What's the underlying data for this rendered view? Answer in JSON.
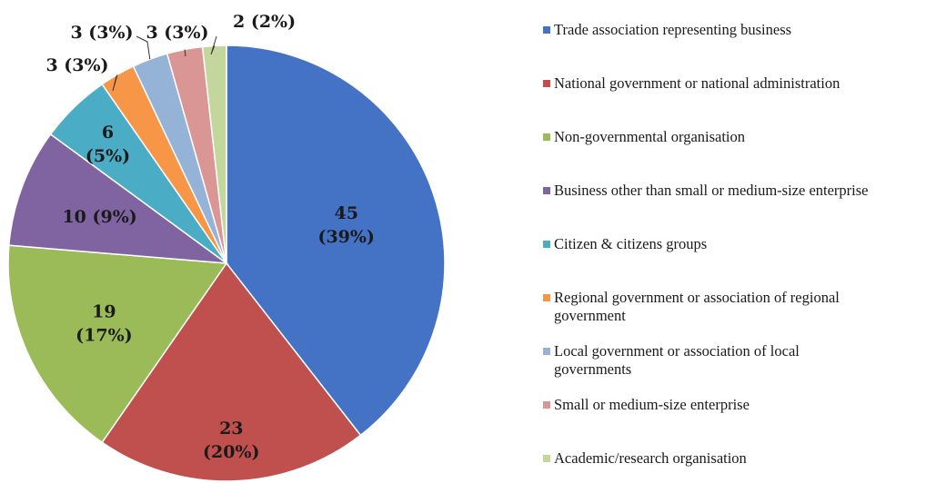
{
  "chart_data": {
    "type": "pie",
    "title": "",
    "legend_position": "right",
    "slices": [
      {
        "name": "Trade association representing business",
        "value": 45,
        "label_value": "45",
        "label_pct": "(39%)",
        "color": "#4472C4"
      },
      {
        "name": "National government or national administration",
        "value": 23,
        "label_value": "23",
        "label_pct": "(20%)",
        "color": "#C0504D"
      },
      {
        "name": "Non-governmental organisation",
        "value": 19,
        "label_value": "19",
        "label_pct": "(17%)",
        "color": "#9BBB59"
      },
      {
        "name": "Business other than small or medium-size enterprise",
        "value": 10,
        "label_value": "10 (9%)",
        "label_pct": "",
        "color": "#8064A2"
      },
      {
        "name": "Citizen & citizens groups",
        "value": 6,
        "label_value": "6",
        "label_pct": "(5%)",
        "color": "#4BACC6"
      },
      {
        "name": "Regional government or association of regional government",
        "value": 3,
        "label_value": "3 (3%)",
        "label_pct": "",
        "color": "#F79646"
      },
      {
        "name": "Local government or association of local governments",
        "value": 3,
        "label_value": "3 (3%)",
        "label_pct": "",
        "color": "#95B3D7"
      },
      {
        "name": "Small or medium-size enterprise",
        "value": 3,
        "label_value": "3 (3%)",
        "label_pct": "",
        "color": "#D99694"
      },
      {
        "name": "Academic/research organisation",
        "value": 2,
        "label_value": "2 (2%)",
        "label_pct": "",
        "color": "#C3D69B"
      }
    ]
  }
}
